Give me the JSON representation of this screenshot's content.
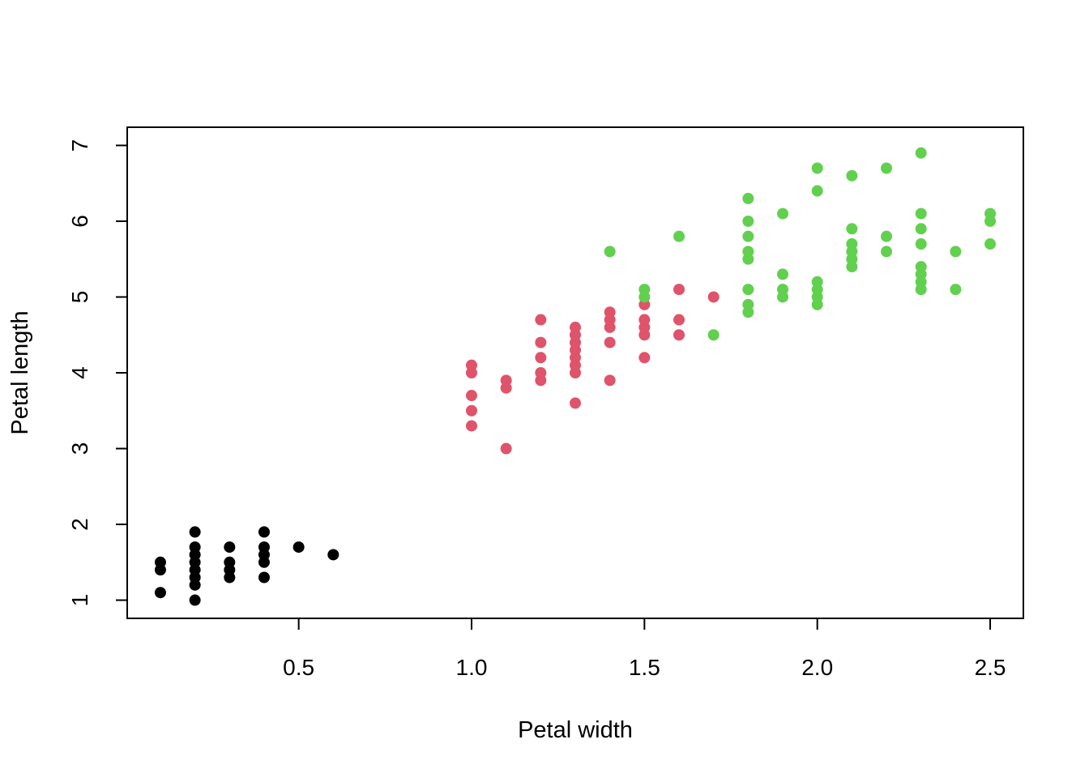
{
  "chart_data": {
    "type": "scatter",
    "title": "",
    "xlabel": "Petal width",
    "ylabel": "Petal length",
    "xlim": [
      0.1,
      2.5
    ],
    "ylim": [
      1,
      7
    ],
    "xticks": [
      0.5,
      1.0,
      1.5,
      2.0,
      2.5
    ],
    "xtick_labels": [
      "0.5",
      "1.0",
      "1.5",
      "2.0",
      "2.5"
    ],
    "yticks": [
      1,
      2,
      3,
      4,
      5,
      6,
      7
    ],
    "ytick_labels": [
      "1",
      "2",
      "3",
      "4",
      "5",
      "6",
      "7"
    ],
    "grid": false,
    "series": [
      {
        "color": "#000000",
        "points": [
          [
            0.1,
            1.1
          ],
          [
            0.1,
            1.4
          ],
          [
            0.1,
            1.5
          ],
          [
            0.2,
            1.0
          ],
          [
            0.2,
            1.2
          ],
          [
            0.2,
            1.3
          ],
          [
            0.2,
            1.4
          ],
          [
            0.2,
            1.5
          ],
          [
            0.2,
            1.6
          ],
          [
            0.2,
            1.7
          ],
          [
            0.2,
            1.9
          ],
          [
            0.3,
            1.3
          ],
          [
            0.3,
            1.4
          ],
          [
            0.3,
            1.5
          ],
          [
            0.3,
            1.7
          ],
          [
            0.4,
            1.3
          ],
          [
            0.4,
            1.5
          ],
          [
            0.4,
            1.6
          ],
          [
            0.4,
            1.7
          ],
          [
            0.4,
            1.9
          ],
          [
            0.5,
            1.7
          ],
          [
            0.6,
            1.6
          ]
        ]
      },
      {
        "color": "#df536b",
        "points": [
          [
            1.0,
            3.3
          ],
          [
            1.0,
            3.5
          ],
          [
            1.0,
            3.7
          ],
          [
            1.0,
            4.0
          ],
          [
            1.0,
            4.1
          ],
          [
            1.1,
            3.0
          ],
          [
            1.1,
            3.8
          ],
          [
            1.1,
            3.9
          ],
          [
            1.2,
            3.9
          ],
          [
            1.2,
            4.0
          ],
          [
            1.2,
            4.2
          ],
          [
            1.2,
            4.4
          ],
          [
            1.2,
            4.7
          ],
          [
            1.3,
            3.6
          ],
          [
            1.3,
            4.0
          ],
          [
            1.3,
            4.1
          ],
          [
            1.3,
            4.2
          ],
          [
            1.3,
            4.3
          ],
          [
            1.3,
            4.4
          ],
          [
            1.3,
            4.5
          ],
          [
            1.3,
            4.6
          ],
          [
            1.4,
            3.9
          ],
          [
            1.4,
            4.4
          ],
          [
            1.4,
            4.6
          ],
          [
            1.4,
            4.7
          ],
          [
            1.4,
            4.8
          ],
          [
            1.5,
            4.2
          ],
          [
            1.5,
            4.5
          ],
          [
            1.5,
            4.6
          ],
          [
            1.5,
            4.7
          ],
          [
            1.5,
            4.9
          ],
          [
            1.6,
            4.5
          ],
          [
            1.6,
            4.7
          ],
          [
            1.6,
            5.1
          ],
          [
            1.7,
            5.0
          ]
        ]
      },
      {
        "color": "#61d04f",
        "points": [
          [
            1.4,
            5.6
          ],
          [
            1.5,
            5.0
          ],
          [
            1.5,
            5.1
          ],
          [
            1.6,
            5.8
          ],
          [
            1.7,
            4.5
          ],
          [
            1.8,
            4.8
          ],
          [
            1.8,
            4.9
          ],
          [
            1.8,
            5.1
          ],
          [
            1.8,
            5.5
          ],
          [
            1.8,
            5.6
          ],
          [
            1.8,
            5.8
          ],
          [
            1.8,
            6.0
          ],
          [
            1.8,
            6.3
          ],
          [
            1.9,
            5.0
          ],
          [
            1.9,
            5.1
          ],
          [
            1.9,
            5.3
          ],
          [
            1.9,
            6.1
          ],
          [
            2.0,
            4.9
          ],
          [
            2.0,
            5.0
          ],
          [
            2.0,
            5.1
          ],
          [
            2.0,
            5.2
          ],
          [
            2.0,
            6.4
          ],
          [
            2.0,
            6.7
          ],
          [
            2.1,
            5.4
          ],
          [
            2.1,
            5.5
          ],
          [
            2.1,
            5.6
          ],
          [
            2.1,
            5.7
          ],
          [
            2.1,
            5.9
          ],
          [
            2.1,
            6.6
          ],
          [
            2.2,
            5.6
          ],
          [
            2.2,
            5.8
          ],
          [
            2.2,
            6.7
          ],
          [
            2.3,
            5.1
          ],
          [
            2.3,
            5.2
          ],
          [
            2.3,
            5.3
          ],
          [
            2.3,
            5.4
          ],
          [
            2.3,
            5.7
          ],
          [
            2.3,
            5.9
          ],
          [
            2.3,
            6.1
          ],
          [
            2.3,
            6.9
          ],
          [
            2.4,
            5.1
          ],
          [
            2.4,
            5.6
          ],
          [
            2.5,
            5.7
          ],
          [
            2.5,
            6.0
          ],
          [
            2.5,
            6.1
          ]
        ]
      }
    ]
  }
}
